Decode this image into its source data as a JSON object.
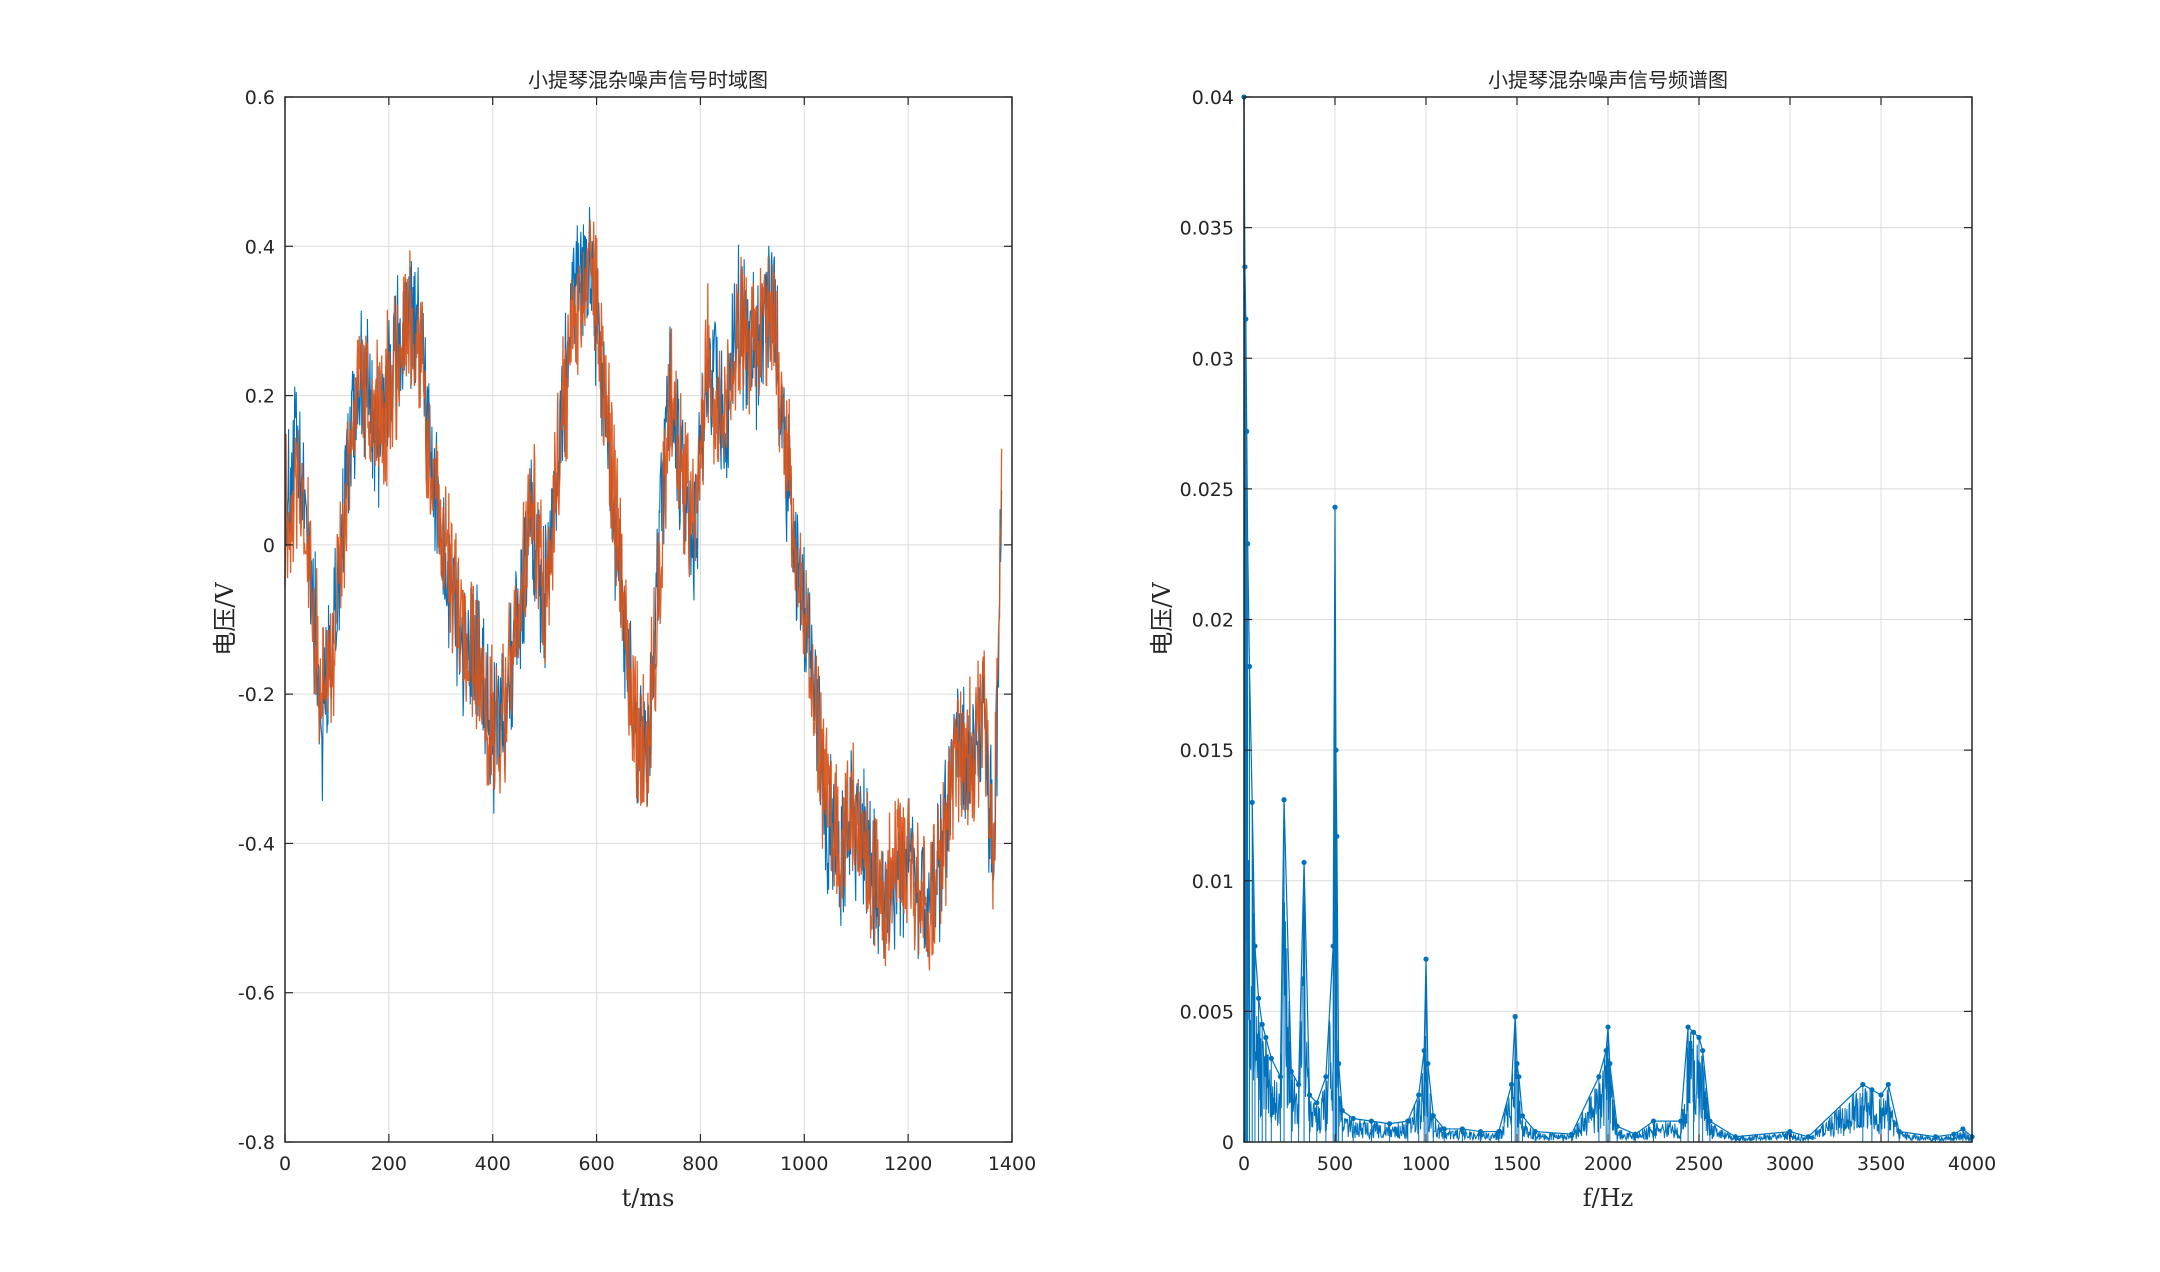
{
  "chart_data": [
    {
      "type": "line",
      "title": "小提琴混杂噪声信号时域图",
      "xlabel": "t/ms",
      "ylabel": "电压/V",
      "xlim": [
        0,
        1400
      ],
      "ylim": [
        -0.8,
        0.6
      ],
      "xticks": [
        "0",
        "200",
        "400",
        "600",
        "800",
        "1000",
        "1200",
        "1400"
      ],
      "yticks": [
        "-0.8",
        "-0.6",
        "-0.4",
        "-0.2",
        "0",
        "0.2",
        "0.4",
        "0.6"
      ],
      "grid": true,
      "series": [
        {
          "color": "#0072BD",
          "x": [
            0,
            20,
            45,
            70,
            95,
            120,
            145,
            175,
            205,
            235,
            260,
            285,
            310,
            340,
            370,
            400,
            425,
            450,
            475,
            500,
            530,
            560,
            590,
            615,
            645,
            670,
            695,
            715,
            740,
            765,
            790,
            815,
            845,
            875,
            905,
            935,
            960,
            990,
            1020,
            1045,
            1070,
            1095,
            1120,
            1150,
            1175,
            1200,
            1230,
            1260,
            1290,
            1320,
            1345,
            1365,
            1380
          ],
          "y": [
            0.04,
            0.12,
            0.02,
            -0.24,
            -0.12,
            0.1,
            0.24,
            0.15,
            0.22,
            0.3,
            0.28,
            0.08,
            -0.02,
            -0.12,
            -0.16,
            -0.26,
            -0.2,
            -0.1,
            0.05,
            -0.08,
            0.15,
            0.34,
            0.38,
            0.2,
            -0.05,
            -0.24,
            -0.3,
            -0.1,
            0.22,
            0.08,
            0.02,
            0.25,
            0.15,
            0.3,
            0.25,
            0.35,
            0.15,
            -0.06,
            -0.2,
            -0.36,
            -0.43,
            -0.38,
            -0.4,
            -0.48,
            -0.45,
            -0.42,
            -0.5,
            -0.45,
            -0.27,
            -0.3,
            -0.22,
            -0.42,
            0.05
          ]
        },
        {
          "color": "#D95319",
          "x": [
            0,
            20,
            45,
            70,
            95,
            120,
            145,
            175,
            205,
            235,
            260,
            285,
            310,
            340,
            370,
            400,
            425,
            450,
            475,
            500,
            530,
            560,
            590,
            615,
            645,
            670,
            695,
            715,
            740,
            765,
            790,
            815,
            845,
            875,
            905,
            935,
            960,
            990,
            1020,
            1045,
            1070,
            1095,
            1120,
            1150,
            1175,
            1200,
            1230,
            1260,
            1290,
            1320,
            1345,
            1365,
            1380
          ],
          "y": [
            0.03,
            0.11,
            0.01,
            -0.23,
            -0.13,
            0.09,
            0.23,
            0.16,
            0.21,
            0.29,
            0.27,
            0.07,
            -0.03,
            -0.11,
            -0.15,
            -0.25,
            -0.21,
            -0.09,
            0.06,
            -0.07,
            0.14,
            0.33,
            0.37,
            0.21,
            -0.04,
            -0.23,
            -0.29,
            -0.11,
            0.21,
            0.09,
            0.03,
            0.24,
            0.16,
            0.29,
            0.26,
            0.34,
            0.16,
            -0.05,
            -0.21,
            -0.35,
            -0.42,
            -0.37,
            -0.41,
            -0.47,
            -0.44,
            -0.41,
            -0.49,
            -0.44,
            -0.28,
            -0.29,
            -0.23,
            -0.41,
            0.04
          ]
        }
      ]
    },
    {
      "type": "line",
      "title": "小提琴混杂噪声信号频谱图",
      "xlabel": "f/Hz",
      "ylabel": "电压/V",
      "xlim": [
        0,
        4000
      ],
      "ylim": [
        0,
        0.04
      ],
      "xticks": [
        "0",
        "500",
        "1000",
        "1500",
        "2000",
        "2500",
        "3000",
        "3500",
        "4000"
      ],
      "yticks": [
        "0",
        "0.005",
        "0.01",
        "0.015",
        "0.02",
        "0.025",
        "0.03",
        "0.035",
        "0.04"
      ],
      "grid": true,
      "series": [
        {
          "color": "#0072BD",
          "marker": ".",
          "x": [
            0,
            5,
            10,
            15,
            20,
            30,
            45,
            60,
            80,
            100,
            120,
            150,
            200,
            220,
            260,
            300,
            330,
            360,
            400,
            450,
            490,
            500,
            505,
            510,
            520,
            540,
            600,
            700,
            800,
            900,
            960,
            990,
            1000,
            1010,
            1040,
            1100,
            1200,
            1300,
            1400,
            1470,
            1490,
            1500,
            1510,
            1530,
            1600,
            1800,
            1950,
            1990,
            2000,
            2010,
            2050,
            2150,
            2250,
            2400,
            2440,
            2470,
            2500,
            2520,
            2560,
            2700,
            3000,
            3100,
            3400,
            3450,
            3500,
            3540,
            3600,
            3800,
            3900,
            3950,
            4000
          ],
          "y": [
            0.04,
            0.0335,
            0.0315,
            0.0272,
            0.0229,
            0.0182,
            0.013,
            0.0075,
            0.0055,
            0.0045,
            0.004,
            0.0032,
            0.0025,
            0.0131,
            0.0027,
            0.0022,
            0.0107,
            0.0018,
            0.0015,
            0.0025,
            0.0075,
            0.0243,
            0.015,
            0.0117,
            0.003,
            0.0012,
            0.0009,
            0.0008,
            0.0007,
            0.0008,
            0.0018,
            0.0035,
            0.007,
            0.003,
            0.001,
            0.0005,
            0.0005,
            0.0004,
            0.0004,
            0.0022,
            0.0048,
            0.003,
            0.0025,
            0.001,
            0.0004,
            0.0003,
            0.0025,
            0.0035,
            0.0044,
            0.003,
            0.0006,
            0.0003,
            0.0008,
            0.0008,
            0.0044,
            0.0042,
            0.004,
            0.0035,
            0.0008,
            0.0002,
            0.0004,
            0.0002,
            0.0022,
            0.002,
            0.0018,
            0.0022,
            0.0004,
            0.0002,
            0.0003,
            0.0005,
            0.0002
          ]
        }
      ]
    }
  ]
}
